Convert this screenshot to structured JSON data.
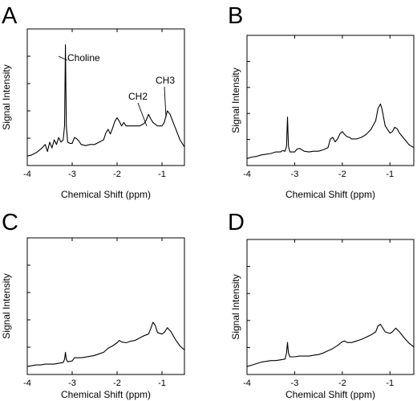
{
  "chart_data": [
    {
      "type": "line",
      "panel": "A",
      "xlabel": "Chemical Shift (ppm)",
      "ylabel": "Signal Intensity",
      "xticks": [
        -4,
        -3,
        -2,
        -1
      ],
      "xlim": [
        -4,
        -0.5
      ],
      "ylim": [
        0,
        1
      ],
      "grid": false,
      "annotations": [
        {
          "text": "Choline",
          "x": -3.15,
          "y": 1.0
        },
        {
          "text": "CH2",
          "x": -1.3,
          "y": 0.42
        },
        {
          "text": "CH3",
          "x": -0.88,
          "y": 0.43
        }
      ],
      "series": [
        {
          "points": [
            [
              -4.0,
              0.04
            ],
            [
              -3.9,
              0.05
            ],
            [
              -3.8,
              0.07
            ],
            [
              -3.7,
              0.1
            ],
            [
              -3.6,
              0.14
            ],
            [
              -3.55,
              0.08
            ],
            [
              -3.5,
              0.16
            ],
            [
              -3.45,
              0.11
            ],
            [
              -3.4,
              0.18
            ],
            [
              -3.35,
              0.14
            ],
            [
              -3.3,
              0.2
            ],
            [
              -3.25,
              0.16
            ],
            [
              -3.2,
              0.18
            ],
            [
              -3.17,
              0.3
            ],
            [
              -3.15,
              1.0
            ],
            [
              -3.13,
              0.3
            ],
            [
              -3.1,
              0.16
            ],
            [
              -3.05,
              0.15
            ],
            [
              -3.0,
              0.15
            ],
            [
              -2.95,
              0.2
            ],
            [
              -2.9,
              0.19
            ],
            [
              -2.85,
              0.17
            ],
            [
              -2.8,
              0.14
            ],
            [
              -2.7,
              0.13
            ],
            [
              -2.6,
              0.14
            ],
            [
              -2.5,
              0.14
            ],
            [
              -2.4,
              0.16
            ],
            [
              -2.3,
              0.18
            ],
            [
              -2.25,
              0.24
            ],
            [
              -2.2,
              0.27
            ],
            [
              -2.15,
              0.23
            ],
            [
              -2.1,
              0.28
            ],
            [
              -2.05,
              0.34
            ],
            [
              -2.0,
              0.37
            ],
            [
              -1.95,
              0.34
            ],
            [
              -1.9,
              0.3
            ],
            [
              -1.85,
              0.33
            ],
            [
              -1.8,
              0.3
            ],
            [
              -1.7,
              0.3
            ],
            [
              -1.6,
              0.3
            ],
            [
              -1.5,
              0.3
            ],
            [
              -1.4,
              0.32
            ],
            [
              -1.35,
              0.35
            ],
            [
              -1.3,
              0.4
            ],
            [
              -1.25,
              0.36
            ],
            [
              -1.2,
              0.33
            ],
            [
              -1.1,
              0.3
            ],
            [
              -1.0,
              0.3
            ],
            [
              -0.95,
              0.33
            ],
            [
              -0.88,
              0.43
            ],
            [
              -0.82,
              0.4
            ],
            [
              -0.75,
              0.33
            ],
            [
              -0.7,
              0.28
            ],
            [
              -0.6,
              0.18
            ],
            [
              -0.5,
              0.12
            ]
          ]
        }
      ]
    },
    {
      "type": "line",
      "panel": "B",
      "xlabel": "Chemical Shift (ppm)",
      "ylabel": "Signal Intensity",
      "xticks": [
        -4,
        -3,
        -2,
        -1
      ],
      "xlim": [
        -4,
        -0.5
      ],
      "ylim": [
        0,
        1
      ],
      "grid": false,
      "annotations": [],
      "series": [
        {
          "points": [
            [
              -4.0,
              0.03
            ],
            [
              -3.9,
              0.05
            ],
            [
              -3.8,
              0.06
            ],
            [
              -3.7,
              0.08
            ],
            [
              -3.6,
              0.09
            ],
            [
              -3.5,
              0.1
            ],
            [
              -3.4,
              0.12
            ],
            [
              -3.3,
              0.12
            ],
            [
              -3.25,
              0.14
            ],
            [
              -3.2,
              0.13
            ],
            [
              -3.17,
              0.2
            ],
            [
              -3.15,
              0.6
            ],
            [
              -3.13,
              0.2
            ],
            [
              -3.1,
              0.12
            ],
            [
              -3.05,
              0.12
            ],
            [
              -3.0,
              0.12
            ],
            [
              -2.95,
              0.16
            ],
            [
              -2.9,
              0.17
            ],
            [
              -2.85,
              0.15
            ],
            [
              -2.8,
              0.13
            ],
            [
              -2.7,
              0.12
            ],
            [
              -2.6,
              0.13
            ],
            [
              -2.5,
              0.13
            ],
            [
              -2.4,
              0.15
            ],
            [
              -2.3,
              0.18
            ],
            [
              -2.25,
              0.3
            ],
            [
              -2.2,
              0.32
            ],
            [
              -2.15,
              0.26
            ],
            [
              -2.1,
              0.3
            ],
            [
              -2.05,
              0.37
            ],
            [
              -2.0,
              0.4
            ],
            [
              -1.95,
              0.36
            ],
            [
              -1.9,
              0.33
            ],
            [
              -1.85,
              0.32
            ],
            [
              -1.8,
              0.3
            ],
            [
              -1.7,
              0.3
            ],
            [
              -1.6,
              0.32
            ],
            [
              -1.5,
              0.36
            ],
            [
              -1.4,
              0.43
            ],
            [
              -1.3,
              0.55
            ],
            [
              -1.25,
              0.72
            ],
            [
              -1.2,
              0.78
            ],
            [
              -1.17,
              0.72
            ],
            [
              -1.1,
              0.48
            ],
            [
              -1.0,
              0.38
            ],
            [
              -0.95,
              0.4
            ],
            [
              -0.9,
              0.46
            ],
            [
              -0.85,
              0.44
            ],
            [
              -0.8,
              0.38
            ],
            [
              -0.7,
              0.3
            ],
            [
              -0.6,
              0.22
            ],
            [
              -0.5,
              0.18
            ]
          ]
        }
      ]
    },
    {
      "type": "line",
      "panel": "C",
      "xlabel": "Chemical Shift (ppm)",
      "ylabel": "Signal Intensity",
      "xticks": [
        -4,
        -3,
        -2,
        -1
      ],
      "xlim": [
        -4,
        -0.5
      ],
      "ylim": [
        0,
        1
      ],
      "grid": false,
      "annotations": [],
      "series": [
        {
          "points": [
            [
              -4.0,
              0.04
            ],
            [
              -3.9,
              0.05
            ],
            [
              -3.8,
              0.06
            ],
            [
              -3.7,
              0.06
            ],
            [
              -3.6,
              0.07
            ],
            [
              -3.5,
              0.07
            ],
            [
              -3.4,
              0.07
            ],
            [
              -3.3,
              0.08
            ],
            [
              -3.2,
              0.09
            ],
            [
              -3.17,
              0.13
            ],
            [
              -3.15,
              0.22
            ],
            [
              -3.13,
              0.13
            ],
            [
              -3.1,
              0.1
            ],
            [
              -3.0,
              0.11
            ],
            [
              -2.95,
              0.15
            ],
            [
              -2.9,
              0.15
            ],
            [
              -2.8,
              0.15
            ],
            [
              -2.7,
              0.16
            ],
            [
              -2.6,
              0.17
            ],
            [
              -2.5,
              0.18
            ],
            [
              -2.4,
              0.2
            ],
            [
              -2.3,
              0.22
            ],
            [
              -2.2,
              0.27
            ],
            [
              -2.1,
              0.3
            ],
            [
              -2.0,
              0.34
            ],
            [
              -1.95,
              0.37
            ],
            [
              -1.9,
              0.35
            ],
            [
              -1.8,
              0.34
            ],
            [
              -1.7,
              0.36
            ],
            [
              -1.6,
              0.37
            ],
            [
              -1.5,
              0.4
            ],
            [
              -1.4,
              0.43
            ],
            [
              -1.3,
              0.45
            ],
            [
              -1.25,
              0.52
            ],
            [
              -1.2,
              0.6
            ],
            [
              -1.15,
              0.56
            ],
            [
              -1.1,
              0.47
            ],
            [
              -1.0,
              0.45
            ],
            [
              -0.95,
              0.47
            ],
            [
              -0.88,
              0.53
            ],
            [
              -0.8,
              0.48
            ],
            [
              -0.7,
              0.38
            ],
            [
              -0.6,
              0.3
            ],
            [
              -0.5,
              0.25
            ]
          ]
        }
      ]
    },
    {
      "type": "line",
      "panel": "D",
      "xlabel": "Chemical Shift (ppm)",
      "ylabel": "Signal Intensity",
      "xticks": [
        -4,
        -3,
        -2,
        -1
      ],
      "xlim": [
        -4,
        -0.5
      ],
      "ylim": [
        0,
        1
      ],
      "grid": false,
      "annotations": [],
      "series": [
        {
          "points": [
            [
              -4.0,
              0.04
            ],
            [
              -3.9,
              0.06
            ],
            [
              -3.8,
              0.08
            ],
            [
              -3.7,
              0.1
            ],
            [
              -3.6,
              0.11
            ],
            [
              -3.5,
              0.12
            ],
            [
              -3.4,
              0.12
            ],
            [
              -3.3,
              0.13
            ],
            [
              -3.2,
              0.14
            ],
            [
              -3.17,
              0.22
            ],
            [
              -3.15,
              0.36
            ],
            [
              -3.13,
              0.22
            ],
            [
              -3.1,
              0.17
            ],
            [
              -3.0,
              0.17
            ],
            [
              -2.9,
              0.18
            ],
            [
              -2.8,
              0.18
            ],
            [
              -2.7,
              0.18
            ],
            [
              -2.6,
              0.19
            ],
            [
              -2.5,
              0.2
            ],
            [
              -2.4,
              0.22
            ],
            [
              -2.3,
              0.25
            ],
            [
              -2.2,
              0.28
            ],
            [
              -2.1,
              0.32
            ],
            [
              -2.0,
              0.37
            ],
            [
              -1.95,
              0.38
            ],
            [
              -1.9,
              0.36
            ],
            [
              -1.8,
              0.36
            ],
            [
              -1.7,
              0.38
            ],
            [
              -1.6,
              0.4
            ],
            [
              -1.5,
              0.43
            ],
            [
              -1.4,
              0.46
            ],
            [
              -1.3,
              0.5
            ],
            [
              -1.25,
              0.58
            ],
            [
              -1.2,
              0.6
            ],
            [
              -1.15,
              0.55
            ],
            [
              -1.1,
              0.5
            ],
            [
              -1.0,
              0.48
            ],
            [
              -0.95,
              0.5
            ],
            [
              -0.88,
              0.55
            ],
            [
              -0.8,
              0.5
            ],
            [
              -0.7,
              0.42
            ],
            [
              -0.6,
              0.35
            ],
            [
              -0.5,
              0.3
            ]
          ]
        }
      ]
    }
  ]
}
